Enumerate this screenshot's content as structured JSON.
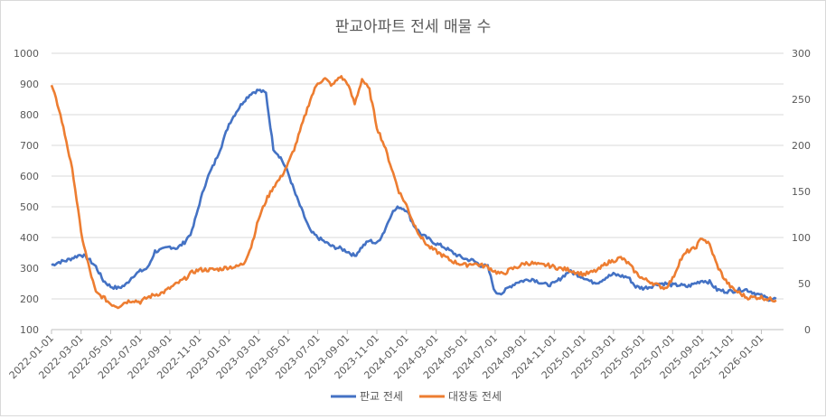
{
  "chart_data": {
    "type": "line",
    "title": "판교아파트 전세 매물 수",
    "xlabel": "",
    "ylabel": "",
    "y_left_lim": [
      100,
      1000
    ],
    "y_left_ticks": [
      100,
      200,
      300,
      400,
      500,
      600,
      700,
      800,
      900,
      1000
    ],
    "y_right_lim": [
      0,
      300
    ],
    "y_right_ticks": [
      0,
      50,
      100,
      150,
      200,
      250,
      300
    ],
    "x_ticks": [
      "2022-01-01",
      "2022-03-01",
      "2022-05-01",
      "2022-07-01",
      "2022-09-01",
      "2022-11-01",
      "2023-01-01",
      "2023-03-01",
      "2023-05-01",
      "2023-07-01",
      "2023-09-01",
      "2023-11-01",
      "2024-01-01",
      "2024-03-01",
      "2024-05-01",
      "2024-07-01",
      "2024-09-01",
      "2024-11-01",
      "2025-01-01",
      "2025-03-01",
      "2025-05-01",
      "2025-07-01",
      "2025-09-01",
      "2025-11-01",
      "2026-01-01"
    ],
    "x_range_months": [
      0,
      49.5
    ],
    "legend_position": "bottom",
    "series": [
      {
        "name": "판교 전세",
        "axis": "left",
        "color": "#4472C4",
        "x_months": [
          0,
          0.5,
          1,
          1.5,
          2,
          2.5,
          3,
          3.5,
          4,
          4.5,
          5,
          5.5,
          6,
          6.5,
          7,
          7.5,
          8,
          8.5,
          9,
          9.5,
          10,
          10.5,
          11,
          11.5,
          12,
          12.5,
          13,
          13.5,
          14,
          14.5,
          15,
          15.5,
          16,
          16.5,
          17,
          17.5,
          18,
          18.5,
          19,
          19.5,
          20,
          20.5,
          21,
          21.5,
          22,
          22.5,
          23,
          23.5,
          24,
          24.5,
          25,
          25.5,
          26,
          26.5,
          27,
          27.5,
          28,
          28.5,
          29,
          29.5,
          30,
          30.5,
          31,
          31.5,
          32,
          32.5,
          33,
          33.5,
          34,
          34.5,
          35,
          35.5,
          36,
          36.5,
          37,
          37.5,
          38,
          38.5,
          39,
          39.5,
          40,
          40.5,
          41,
          41.5,
          42,
          42.5,
          43,
          43.5,
          44,
          44.5,
          45,
          45.5,
          46,
          46.5,
          47,
          47.5,
          48,
          48.5,
          49
        ],
        "values": [
          310,
          320,
          325,
          335,
          345,
          330,
          305,
          260,
          240,
          235,
          245,
          275,
          290,
          300,
          355,
          360,
          370,
          365,
          385,
          420,
          510,
          590,
          640,
          700,
          770,
          810,
          845,
          870,
          880,
          870,
          690,
          660,
          610,
          540,
          480,
          420,
          400,
          385,
          370,
          365,
          355,
          340,
          370,
          390,
          380,
          420,
          480,
          500,
          490,
          440,
          410,
          395,
          380,
          370,
          355,
          340,
          330,
          325,
          310,
          305,
          220,
          220,
          240,
          255,
          260,
          265,
          255,
          245,
          250,
          270,
          290,
          280,
          270,
          255,
          255,
          270,
          280,
          275,
          270,
          240,
          235,
          240,
          250,
          250,
          245,
          245,
          240,
          250,
          260,
          255,
          230,
          225,
          225,
          230,
          230,
          220,
          210,
          200,
          200
        ]
      },
      {
        "name": "대장동 전세",
        "axis": "right",
        "color": "#ED7D31",
        "x_months": [
          0,
          0.5,
          1,
          1.5,
          2,
          2.5,
          3,
          3.5,
          4,
          4.5,
          5,
          5.5,
          6,
          6.5,
          7,
          7.5,
          8,
          8.5,
          9,
          9.5,
          10,
          10.5,
          11,
          11.5,
          12,
          12.5,
          13,
          13.5,
          14,
          14.5,
          15,
          15.5,
          16,
          16.5,
          17,
          17.5,
          18,
          18.5,
          19,
          19.5,
          20,
          20.5,
          21,
          21.5,
          22,
          22.5,
          23,
          23.5,
          24,
          24.5,
          25,
          25.5,
          26,
          26.5,
          27,
          27.5,
          28,
          28.5,
          29,
          29.5,
          30,
          30.5,
          31,
          31.5,
          32,
          32.5,
          33,
          33.5,
          34,
          34.5,
          35,
          35.5,
          36,
          36.5,
          37,
          37.5,
          38,
          38.5,
          39,
          39.5,
          40,
          40.5,
          41,
          41.5,
          42,
          42.5,
          43,
          43.5,
          44,
          44.5,
          45,
          45.5,
          46,
          46.5,
          47,
          47.5,
          48,
          48.5,
          49
        ],
        "values": [
          265,
          240,
          205,
          165,
          105,
          70,
          40,
          35,
          28,
          25,
          30,
          32,
          30,
          35,
          38,
          40,
          45,
          50,
          55,
          62,
          65,
          65,
          65,
          66,
          68,
          68,
          72,
          90,
          120,
          140,
          155,
          165,
          180,
          200,
          225,
          250,
          268,
          272,
          265,
          275,
          268,
          245,
          272,
          260,
          220,
          200,
          175,
          150,
          135,
          115,
          100,
          90,
          85,
          80,
          75,
          72,
          70,
          72,
          70,
          68,
          63,
          60,
          65,
          68,
          72,
          72,
          70,
          70,
          68,
          66,
          65,
          62,
          60,
          62,
          65,
          72,
          75,
          78,
          72,
          62,
          55,
          52,
          48,
          45,
          55,
          75,
          85,
          88,
          100,
          92,
          70,
          55,
          45,
          40,
          35,
          35,
          35,
          33,
          32
        ]
      }
    ]
  }
}
